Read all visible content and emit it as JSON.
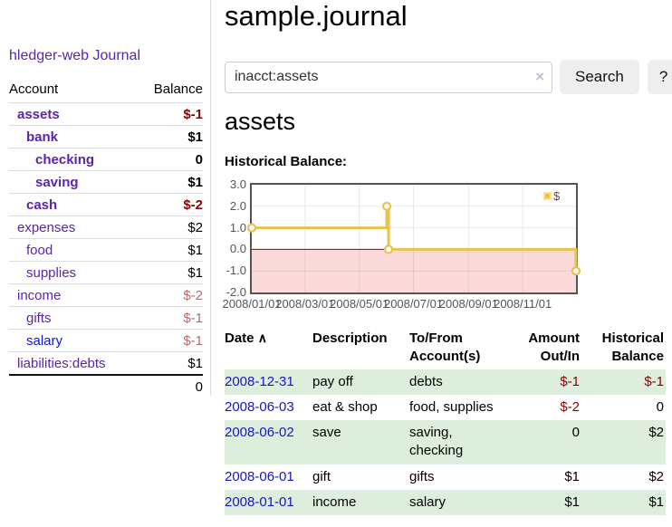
{
  "app": {
    "brand": "hledger-web"
  },
  "colors": {
    "link_purple": "#5c24a8",
    "link_blue": "#1515cc",
    "negative_strong": "#8b0000",
    "negative_weak": "#b36b6b",
    "row_stripe_green": "#ddeedd",
    "chart_line_gold": "#e9c24d",
    "chart_negative_region": "#fcdada",
    "chart_zero_line": "#990000",
    "chart_border": "#545454"
  },
  "sidebar": {
    "journal_link": "Journal",
    "headers": {
      "account": "Account",
      "balance": "Balance"
    },
    "accounts": [
      {
        "name": "assets",
        "balance": "$-1"
      },
      {
        "name": "bank",
        "balance": "$1"
      },
      {
        "name": "checking",
        "balance": "0"
      },
      {
        "name": "saving",
        "balance": "$1"
      },
      {
        "name": "cash",
        "balance": "$-2"
      },
      {
        "name": "expenses",
        "balance": "$2"
      },
      {
        "name": "food",
        "balance": "$1"
      },
      {
        "name": "supplies",
        "balance": "$1"
      },
      {
        "name": "income",
        "balance": "$-2"
      },
      {
        "name": "gifts",
        "balance": "$-1"
      },
      {
        "name": "salary",
        "balance": "$-1"
      },
      {
        "name": "liabilities:debts",
        "balance": "$1"
      }
    ],
    "total": "0"
  },
  "main": {
    "title": "sample.journal",
    "search": {
      "value": "inacct:assets",
      "clear_icon": "×",
      "search_button": "Search",
      "help_button": "?"
    },
    "account_heading": "assets",
    "section_heading": "Historical Balance:"
  },
  "chart_data": {
    "type": "line",
    "title": "Historical Balance",
    "step": true,
    "x_range": [
      "2008-01-01",
      "2008-12-31"
    ],
    "y_range": [
      -2,
      3
    ],
    "y_ticks": [
      {
        "label": "3.0",
        "value": 3
      },
      {
        "label": "2.0",
        "value": 2
      },
      {
        "label": "1.0",
        "value": 1
      },
      {
        "label": "0.0",
        "value": 0
      },
      {
        "label": "-1.0",
        "value": -1
      },
      {
        "label": "-2.0",
        "value": -2
      }
    ],
    "x_ticks": [
      {
        "label": "2008/01/01",
        "date": "2008-01-01"
      },
      {
        "label": "2008/03/01",
        "date": "2008-03-01"
      },
      {
        "label": "2008/05/01",
        "date": "2008-05-01"
      },
      {
        "label": "2008/07/01",
        "date": "2008-07-01"
      },
      {
        "label": "2008/09/01",
        "date": "2008-09-01"
      },
      {
        "label": "2008/11/01",
        "date": "2008-11-01"
      }
    ],
    "series": [
      {
        "name": "$",
        "color": "#e9c24d",
        "marker": "open-circle",
        "points": [
          [
            "2008-01-01",
            1
          ],
          [
            "2008-06-01",
            2
          ],
          [
            "2008-06-03",
            0
          ],
          [
            "2008-12-31",
            -1
          ]
        ]
      }
    ],
    "legend": {
      "label": "$",
      "position": "top-right"
    },
    "grid": true,
    "negative_region_color": "#fcdada",
    "zero_line_color": "#990000"
  },
  "register": {
    "headers": {
      "date": "Date",
      "description": "Description",
      "account_line1": "To/From",
      "account_line2": "Account(s)",
      "amount_line1": "Amount",
      "amount_line2": "Out/In",
      "balance_line1": "Historical",
      "balance_line2": "Balance"
    },
    "sort_indicator": "∧",
    "rows": [
      {
        "date": "2008-12-31",
        "description": "pay off",
        "accounts": "debts",
        "amount": "$-1",
        "balance": "$-1"
      },
      {
        "date": "2008-06-03",
        "description": "eat & shop",
        "accounts": "food, supplies",
        "amount": "$-2",
        "balance": "0"
      },
      {
        "date": "2008-06-02",
        "description": "save",
        "accounts": "saving, checking",
        "amount": "0",
        "balance": "$2"
      },
      {
        "date": "2008-06-01",
        "description": "gift",
        "accounts": "gifts",
        "amount": "$1",
        "balance": "$2"
      },
      {
        "date": "2008-01-01",
        "description": "income",
        "accounts": "salary",
        "amount": "$1",
        "balance": "$1"
      }
    ]
  }
}
